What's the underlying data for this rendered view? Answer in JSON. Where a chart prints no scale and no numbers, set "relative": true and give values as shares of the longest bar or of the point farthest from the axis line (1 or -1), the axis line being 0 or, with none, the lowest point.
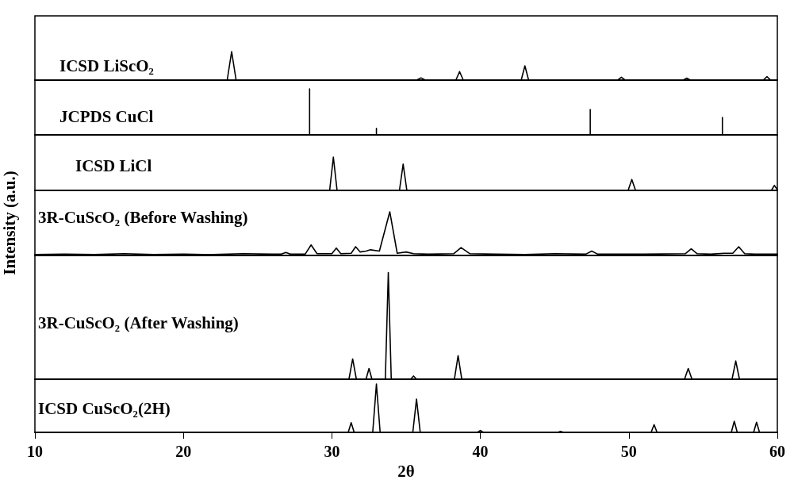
{
  "chart_data": [
    {
      "type": "line",
      "relative": true,
      "xlim": [
        10,
        60
      ],
      "tick_labels": false,
      "marker": "none",
      "line_style": "solid",
      "grid": false,
      "legend": false,
      "series": [
        {
          "name": "ICSD LiScO₂",
          "color": "#000000",
          "x": [
            10,
            22.95,
            23.25,
            23.55,
            35.7,
            36.0,
            36.3,
            38.35,
            38.6,
            38.85,
            42.75,
            43.0,
            43.25,
            49.25,
            49.5,
            49.75,
            53.65,
            53.9,
            54.15,
            59.05,
            59.3,
            59.55,
            60
          ],
          "values": [
            0,
            0,
            1,
            0,
            0,
            0.08,
            0,
            0,
            0.3,
            0,
            0,
            0.5,
            0,
            0,
            0.1,
            0,
            0,
            0.07,
            0,
            0,
            0.12,
            0,
            0
          ]
        }
      ]
    },
    {
      "type": "line",
      "relative": true,
      "xlim": [
        10,
        60
      ],
      "tick_labels": false,
      "marker": "none",
      "line_style": "solid",
      "grid": false,
      "legend": false,
      "series": [
        {
          "name": "JCPDS CuCl",
          "color": "#000000",
          "x": [
            10,
            28.5,
            28.5,
            28.5,
            33.0,
            33.0,
            33.0,
            47.4,
            47.4,
            47.4,
            56.3,
            56.3,
            56.3,
            60
          ],
          "values": [
            0,
            0,
            1,
            0,
            0,
            0.14,
            0,
            0,
            0.55,
            0,
            0,
            0.38,
            0,
            0
          ]
        }
      ]
    },
    {
      "type": "line",
      "relative": true,
      "xlim": [
        10,
        60
      ],
      "tick_labels": false,
      "marker": "none",
      "line_style": "solid",
      "grid": false,
      "legend": false,
      "series": [
        {
          "name": "ICSD LiCl",
          "color": "#000000",
          "x": [
            10,
            29.85,
            30.1,
            30.35,
            34.55,
            34.8,
            35.05,
            49.95,
            50.2,
            50.45,
            59.6,
            59.8,
            60
          ],
          "values": [
            0,
            0,
            1,
            0,
            0,
            0.79,
            0,
            0,
            0.33,
            0,
            0,
            0.15,
            0.02
          ]
        }
      ]
    },
    {
      "type": "line",
      "relative": true,
      "xlim": [
        10,
        60
      ],
      "tick_labels": false,
      "marker": "none",
      "line_style": "solid",
      "grid": false,
      "legend": false,
      "ylabel": "Intensity (a.u.)",
      "series": [
        {
          "name": "3R-CuScO₂ (Before Washing)",
          "color": "#000000",
          "x": [
            10,
            12,
            14,
            16,
            18,
            20,
            22,
            24,
            26,
            26.6,
            26.9,
            27.2,
            28.2,
            28.6,
            29.0,
            30.0,
            30.3,
            30.6,
            31.3,
            31.6,
            31.9,
            32.3,
            32.6,
            33.2,
            33.9,
            34.4,
            35.0,
            35.5,
            36.5,
            38.2,
            38.7,
            39.3,
            41,
            43,
            45,
            47.1,
            47.5,
            47.9,
            49,
            51,
            53.8,
            54.2,
            54.6,
            55.5,
            56.4,
            57.0,
            57.4,
            57.8,
            58.5,
            60
          ],
          "values": [
            0.02,
            0.03,
            0.02,
            0.04,
            0.02,
            0.03,
            0.02,
            0.04,
            0.03,
            0.03,
            0.07,
            0.03,
            0.03,
            0.24,
            0.04,
            0.04,
            0.17,
            0.04,
            0.05,
            0.2,
            0.08,
            0.1,
            0.13,
            0.1,
            1,
            0.05,
            0.08,
            0.04,
            0.03,
            0.04,
            0.18,
            0.04,
            0.03,
            0.02,
            0.04,
            0.03,
            0.1,
            0.03,
            0.03,
            0.03,
            0.04,
            0.15,
            0.04,
            0.03,
            0.05,
            0.05,
            0.2,
            0.04,
            0.03,
            0.03
          ]
        }
      ]
    },
    {
      "type": "line",
      "relative": true,
      "xlim": [
        10,
        60
      ],
      "tick_labels": false,
      "marker": "none",
      "line_style": "solid",
      "grid": false,
      "legend": false,
      "series": [
        {
          "name": "3R-CuScO₂ (After Washing)",
          "color": "#000000",
          "x": [
            10,
            31.15,
            31.4,
            31.65,
            32.3,
            32.5,
            32.7,
            33.6,
            33.8,
            34.0,
            35.3,
            35.5,
            35.7,
            38.25,
            38.5,
            38.75,
            53.75,
            54.0,
            54.25,
            56.95,
            57.2,
            57.45,
            60
          ],
          "values": [
            0,
            0,
            0.19,
            0,
            0,
            0.1,
            0,
            0,
            1,
            0,
            0,
            0.03,
            0,
            0,
            0.22,
            0,
            0,
            0.1,
            0,
            0,
            0.17,
            0,
            0
          ]
        }
      ]
    },
    {
      "type": "line",
      "relative": true,
      "xlim": [
        10,
        60
      ],
      "xticks": [
        10,
        20,
        30,
        40,
        50,
        60
      ],
      "tick_labels": "x",
      "xlabel": "2θ",
      "marker": "none",
      "line_style": "solid",
      "grid": false,
      "legend": false,
      "series": [
        {
          "name": "ICSD CuScO₂(2H)",
          "color": "#000000",
          "x": [
            10,
            31.1,
            31.3,
            31.5,
            32.75,
            33.0,
            33.25,
            35.45,
            35.7,
            35.95,
            39.8,
            40.0,
            40.2,
            45.2,
            45.4,
            45.6,
            51.5,
            51.7,
            51.9,
            56.9,
            57.1,
            57.3,
            58.4,
            58.6,
            58.8,
            60
          ],
          "values": [
            0,
            0,
            0.2,
            0,
            0,
            1,
            0,
            0,
            0.69,
            0,
            0,
            0.04,
            0,
            0,
            0.02,
            0,
            0,
            0.16,
            0,
            0,
            0.23,
            0,
            0,
            0.21,
            0,
            0
          ]
        }
      ]
    }
  ]
}
